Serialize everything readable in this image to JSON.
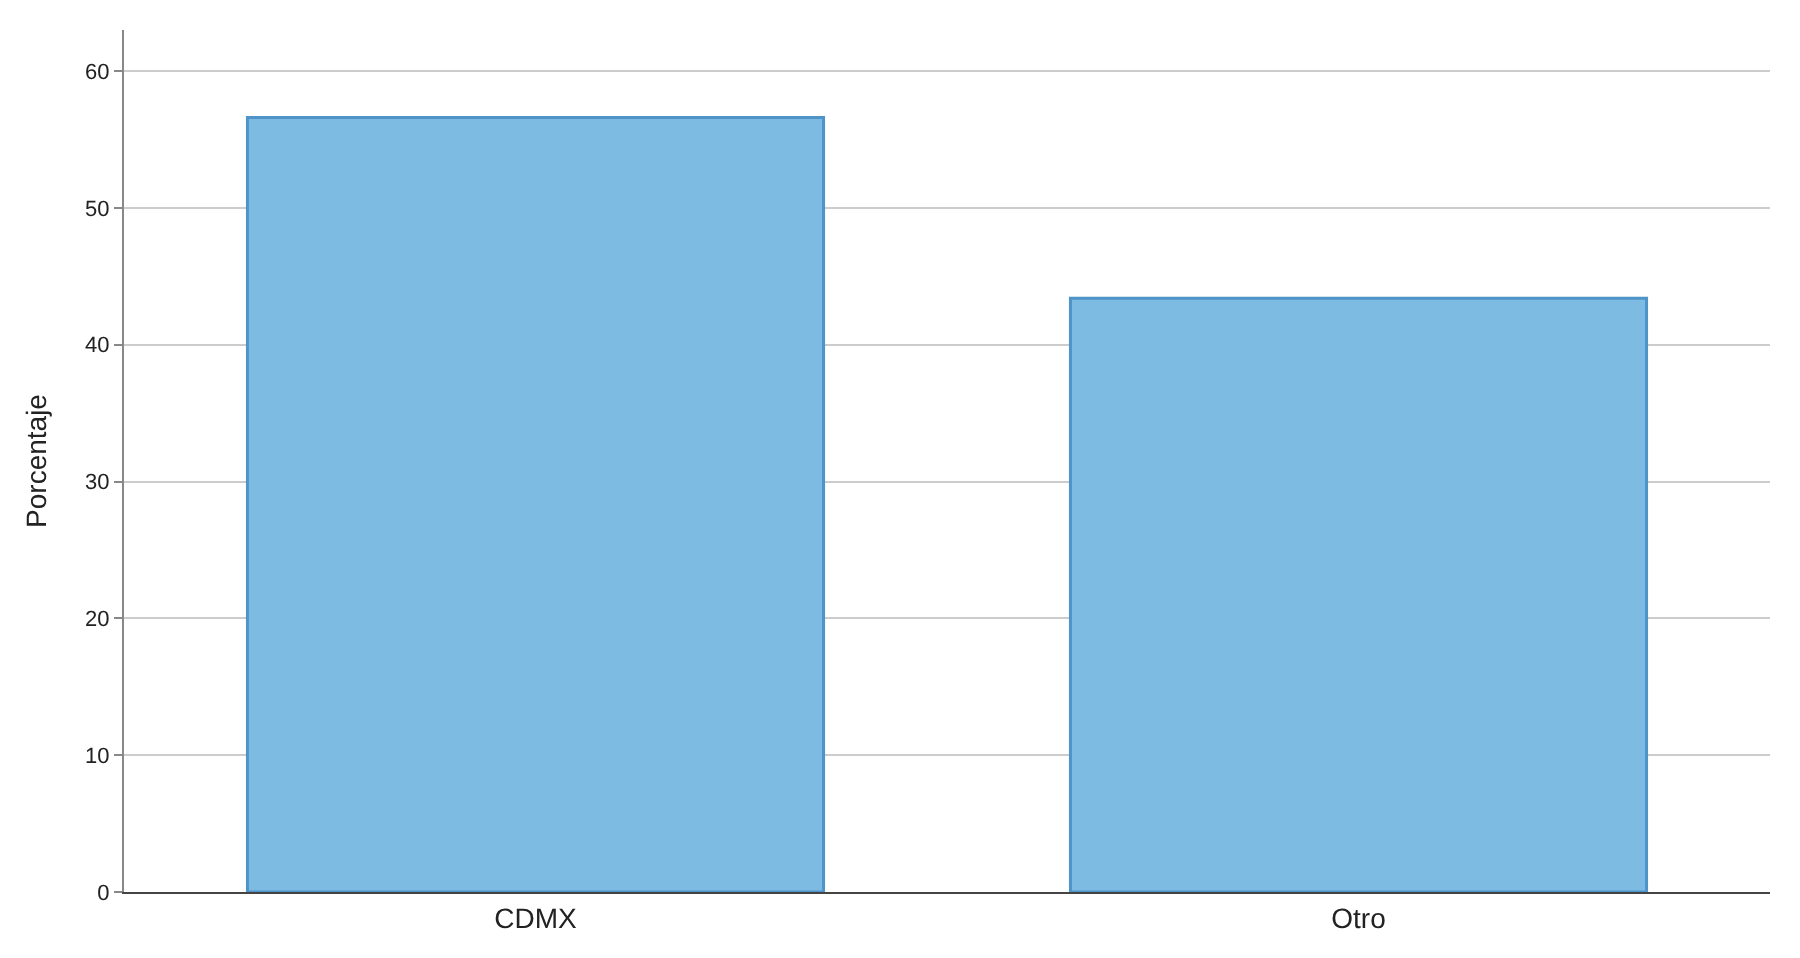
{
  "chart_data": {
    "type": "bar",
    "ylabel": "Porcentaje",
    "categories": [
      "CDMX",
      "Otro"
    ],
    "values": [
      56.6,
      43.4
    ],
    "color": "#7dbbe3",
    "ylim": [
      0,
      63
    ],
    "yticks": [
      0,
      10,
      20,
      30,
      40,
      50,
      60
    ],
    "grid": "y",
    "legend": false
  }
}
